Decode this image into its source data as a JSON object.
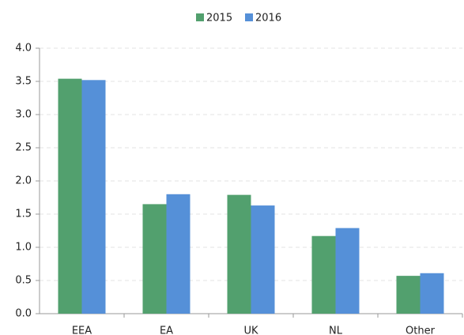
{
  "chart_data": {
    "type": "bar",
    "categories": [
      "EEA",
      "EA",
      "UK",
      "NL",
      "Other"
    ],
    "series": [
      {
        "name": "2015",
        "color": "#52a06e",
        "values": [
          3.54,
          1.65,
          1.79,
          1.17,
          0.57
        ]
      },
      {
        "name": "2016",
        "color": "#5590d8",
        "values": [
          3.52,
          1.8,
          1.63,
          1.29,
          0.61
        ]
      }
    ],
    "ylim": [
      0,
      4
    ],
    "yticks": [
      {
        "value": 0,
        "label": "0.0"
      },
      0.5,
      {
        "value": 1,
        "label": "1.0"
      },
      1.5,
      {
        "value": 2,
        "label": "2.0"
      },
      2.5,
      {
        "value": 3,
        "label": "3.0"
      },
      3.5,
      {
        "value": 4,
        "label": "4.0"
      }
    ],
    "grid": true,
    "legend": "top"
  }
}
